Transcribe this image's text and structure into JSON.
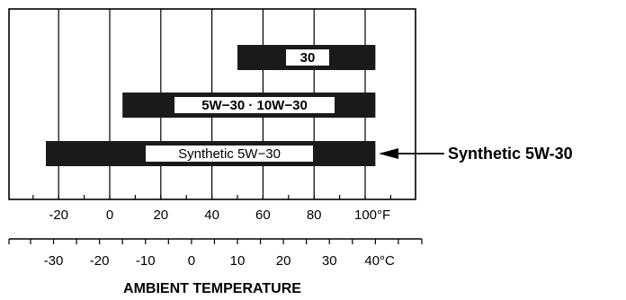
{
  "chart_data": {
    "type": "bar",
    "orientation": "horizontal-range",
    "bars": [
      {
        "label": "30",
        "from_f": 50,
        "to_f": 104
      },
      {
        "label": "5W−30 · 10W−30",
        "from_f": 5,
        "to_f": 104
      },
      {
        "label": "Synthetic  5W−30",
        "from_f": -25,
        "to_f": 104
      }
    ],
    "callout": {
      "text": "Synthetic 5W-30",
      "bar_index": 2
    },
    "fahrenheit_ticks": [
      "-20",
      "0",
      "20",
      "40",
      "60",
      "80",
      "100°F"
    ],
    "fahrenheit_values": [
      -20,
      0,
      20,
      40,
      60,
      80,
      100
    ],
    "celsius_ticks": [
      "-30",
      "-20",
      "-10",
      "0",
      "10",
      "20",
      "30",
      "40°C"
    ],
    "celsius_values": [
      -30,
      -20,
      -10,
      0,
      10,
      20,
      30,
      40
    ],
    "xlim_f": [
      -40,
      113
    ],
    "xlabel": "AMBIENT TEMPERATURE",
    "grid": true,
    "colors": {
      "bar": "#1a1a1a",
      "label_box": "#ffffff",
      "grid": "#000000"
    }
  }
}
